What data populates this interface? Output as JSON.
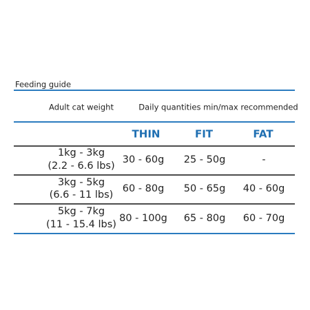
{
  "header": {
    "title": "Feeding guide"
  },
  "table": {
    "columns": [
      "Adult cat weight",
      "Daily quantities min/max recommended"
    ],
    "levels": [
      "THIN",
      "FIT",
      "FAT"
    ],
    "rows": [
      [
        "1kg - 3kg",
        "(2.2 - 6.6 lbs)",
        "30 - 60g",
        "25 - 50g",
        "-"
      ],
      [
        "3kg - 5kg",
        "(6.6 - 11 lbs)",
        "60 - 80g",
        "50 - 65g",
        "40 - 60g"
      ],
      [
        "5kg - 7kg",
        "(11 - 15.4 lbs)",
        "80 - 100g",
        "65 - 80g",
        "60 - 70g"
      ]
    ]
  }
}
